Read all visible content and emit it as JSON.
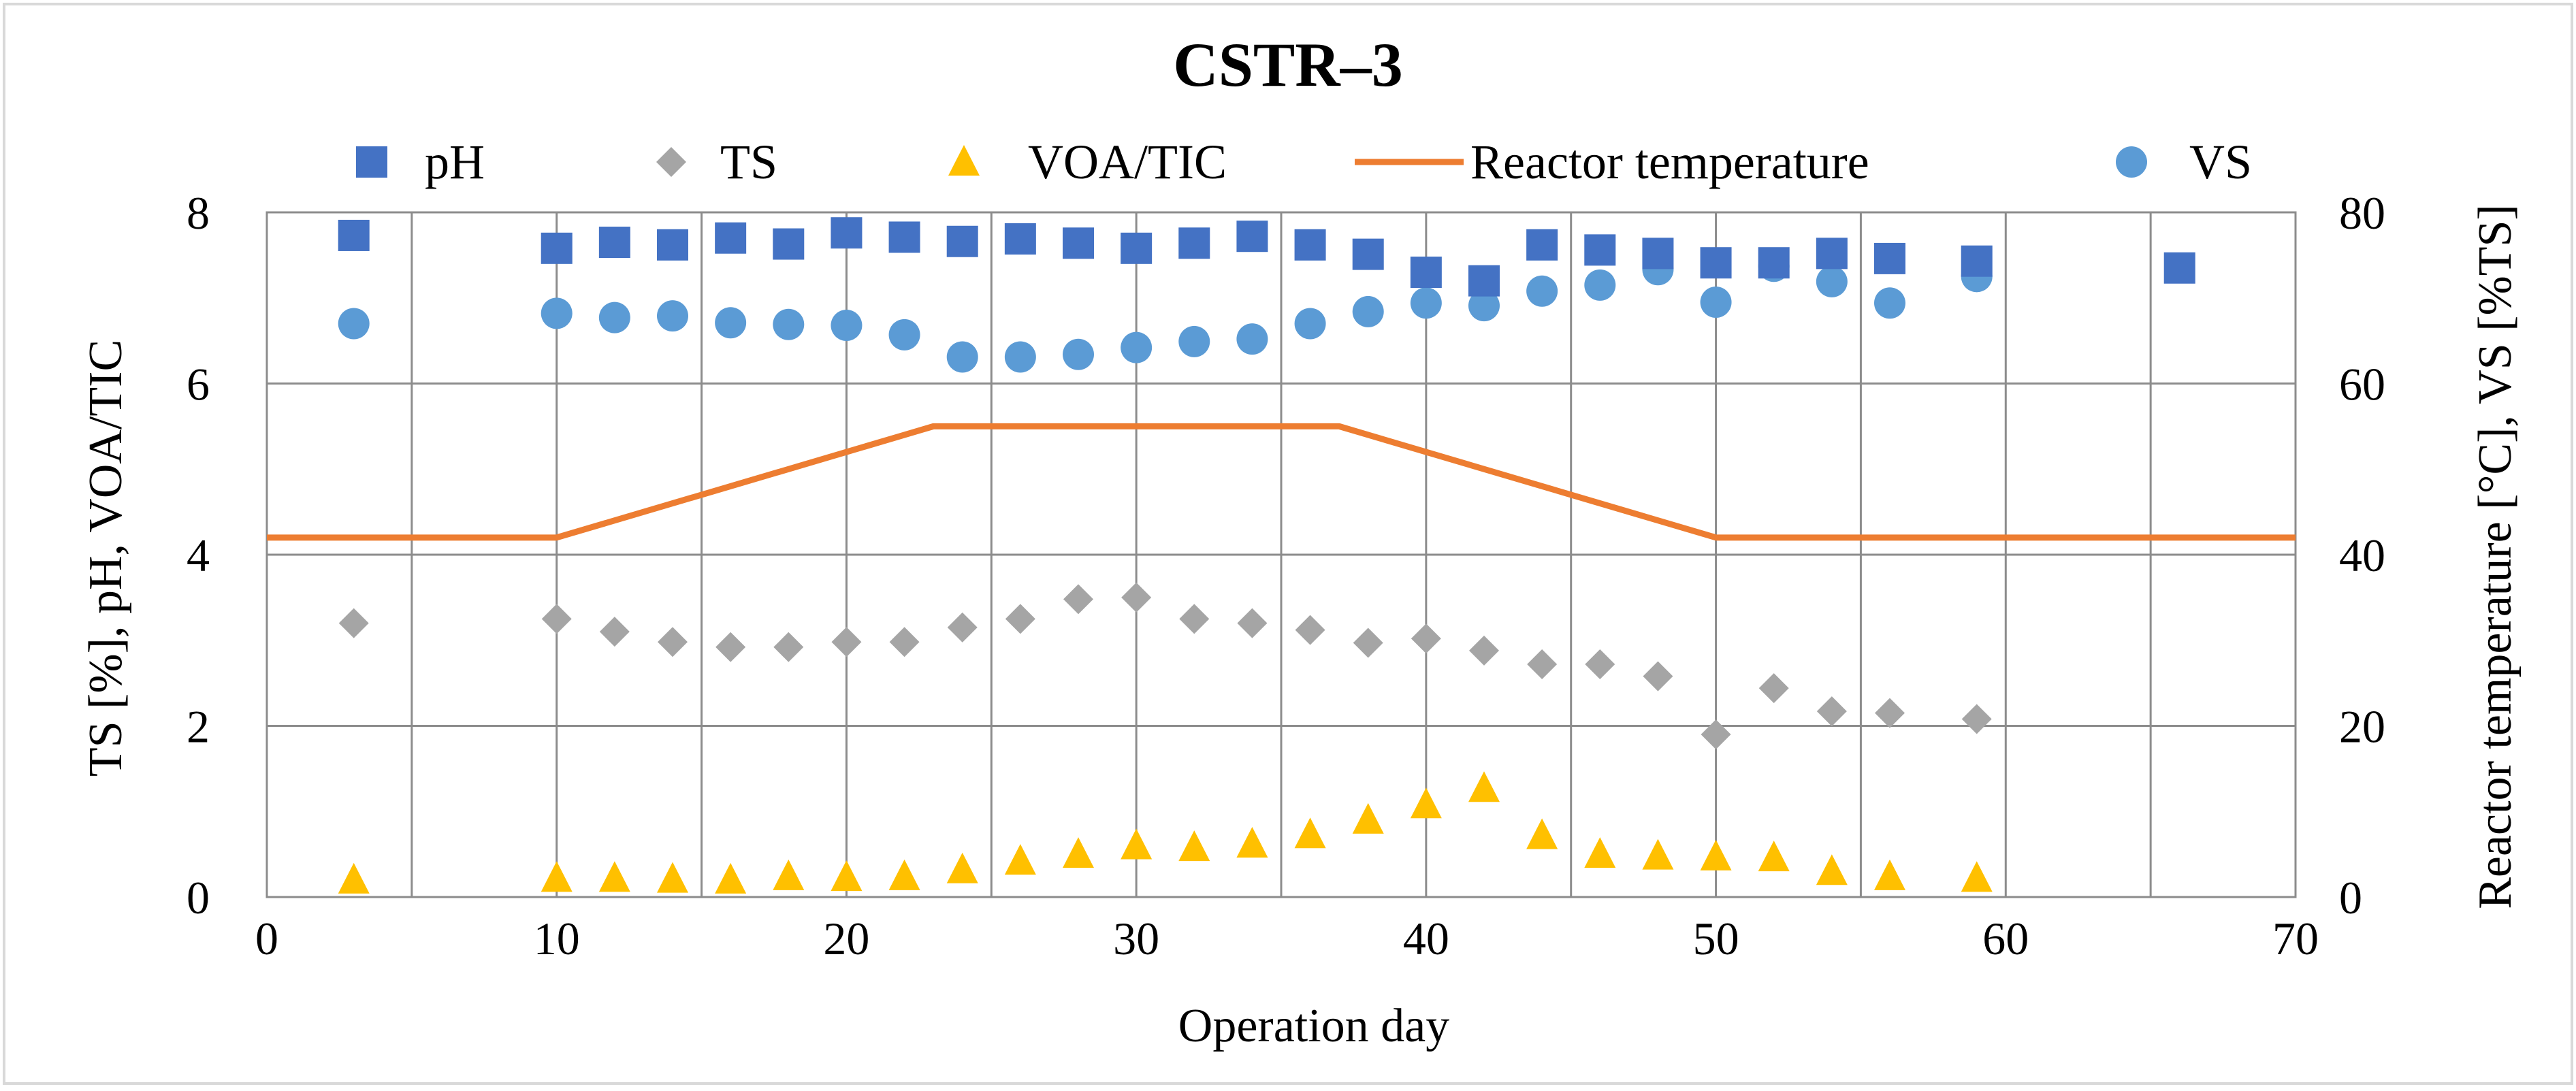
{
  "chart_data": {
    "type": "scatter",
    "title": "CSTR–3",
    "xlabel": "Operation day",
    "ylabel_left": "TS [%], pH, VOA/TIC",
    "ylabel_right": "Reactor temperature [°C], VS [%TS]",
    "xlim": [
      0,
      70
    ],
    "ylim_left": [
      0,
      8
    ],
    "ylim_right": [
      0,
      80
    ],
    "x_ticks": [
      0,
      10,
      20,
      30,
      40,
      50,
      60,
      70
    ],
    "y_left_ticks": [
      0,
      2,
      4,
      6,
      8
    ],
    "y_right_ticks": [
      0,
      20,
      40,
      60,
      80
    ],
    "grid": true,
    "legend_position": "top",
    "series": [
      {
        "name": "pH",
        "axis": "left",
        "marker": "square",
        "color": "#4472C4",
        "x": [
          3,
          10,
          12,
          14,
          16,
          18,
          20,
          22,
          24,
          26,
          28,
          30,
          32,
          34,
          36,
          38,
          40,
          42,
          44,
          46,
          48,
          50,
          52,
          54,
          56,
          59,
          66
        ],
        "y": [
          7.73,
          7.58,
          7.65,
          7.62,
          7.7,
          7.63,
          7.76,
          7.71,
          7.66,
          7.69,
          7.64,
          7.58,
          7.64,
          7.72,
          7.62,
          7.51,
          7.3,
          7.2,
          7.62,
          7.56,
          7.52,
          7.41,
          7.41,
          7.52,
          7.46,
          7.43,
          7.35
        ]
      },
      {
        "name": "TS",
        "axis": "left",
        "marker": "diamond",
        "color": "#A5A5A5",
        "x": [
          3,
          10,
          12,
          14,
          16,
          18,
          20,
          22,
          24,
          26,
          28,
          30,
          32,
          34,
          36,
          38,
          40,
          42,
          44,
          46,
          48,
          50,
          52,
          54,
          56,
          59
        ],
        "y": [
          3.2,
          3.25,
          3.1,
          2.98,
          2.92,
          2.92,
          2.98,
          2.98,
          3.15,
          3.25,
          3.48,
          3.5,
          3.25,
          3.2,
          3.12,
          2.97,
          3.02,
          2.88,
          2.72,
          2.72,
          2.58,
          1.9,
          2.44,
          2.17,
          2.15,
          2.08
        ]
      },
      {
        "name": "VOA/TIC",
        "axis": "left",
        "marker": "triangle",
        "color": "#FFC000",
        "x": [
          3,
          10,
          12,
          14,
          16,
          18,
          20,
          22,
          24,
          26,
          28,
          30,
          32,
          34,
          36,
          38,
          40,
          42,
          44,
          46,
          48,
          50,
          52,
          54,
          56,
          59
        ],
        "y": [
          0.2,
          0.22,
          0.22,
          0.21,
          0.2,
          0.24,
          0.23,
          0.24,
          0.32,
          0.42,
          0.5,
          0.6,
          0.58,
          0.62,
          0.73,
          0.9,
          1.08,
          1.27,
          0.72,
          0.5,
          0.48,
          0.47,
          0.46,
          0.3,
          0.24,
          0.22
        ]
      },
      {
        "name": "Reactor temperature",
        "axis": "right",
        "marker": "line",
        "color": "#ED7D31",
        "x": [
          0,
          10,
          23,
          37,
          50,
          70
        ],
        "y": [
          42,
          42,
          55,
          55,
          42,
          42
        ]
      },
      {
        "name": "VS",
        "axis": "right",
        "marker": "circle",
        "color": "#5B9BD5",
        "x": [
          3,
          10,
          12,
          14,
          16,
          18,
          20,
          22,
          24,
          26,
          28,
          30,
          32,
          34,
          36,
          38,
          40,
          42,
          44,
          46,
          48,
          50,
          52,
          54,
          56,
          59
        ],
        "y": [
          67,
          68.2,
          67.7,
          67.9,
          67.1,
          66.9,
          66.8,
          65.7,
          63.1,
          63.1,
          63.4,
          64.2,
          64.9,
          65.2,
          67,
          68.4,
          69.4,
          69.1,
          70.8,
          71.5,
          73.3,
          69.5,
          73.7,
          71.9,
          69.4,
          72.5
        ]
      }
    ]
  }
}
